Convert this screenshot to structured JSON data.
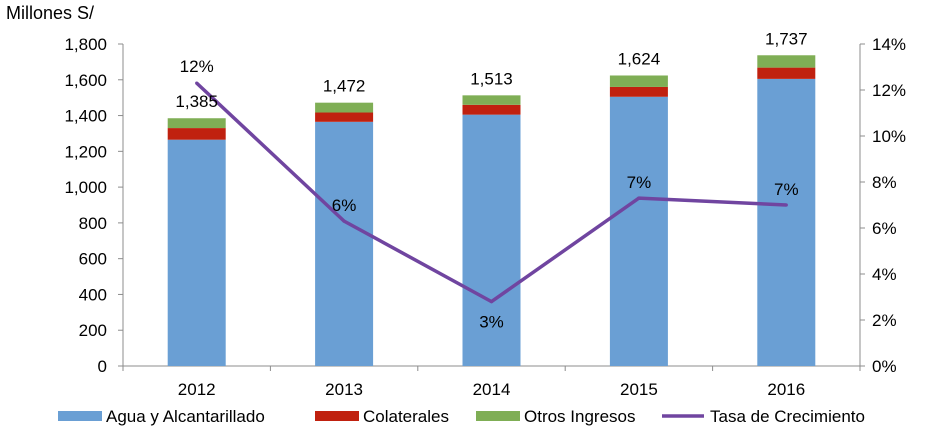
{
  "chart_data": {
    "type": "bar",
    "unit_label": "Millones S/",
    "categories": [
      "2012",
      "2013",
      "2014",
      "2015",
      "2016"
    ],
    "series": [
      {
        "name": "Agua y Alcantarillado",
        "type": "bar",
        "axis": "left",
        "color": "#6a9fd4",
        "values": [
          1265,
          1365,
          1405,
          1505,
          1605
        ]
      },
      {
        "name": "Colaterales",
        "type": "bar",
        "axis": "left",
        "color": "#c0210f",
        "values": [
          65,
          52,
          55,
          55,
          63
        ]
      },
      {
        "name": "Otros Ingresos",
        "type": "bar",
        "axis": "left",
        "color": "#7fae55",
        "values": [
          55,
          55,
          53,
          64,
          69
        ]
      },
      {
        "name": "Tasa de Crecimiento",
        "type": "line",
        "axis": "right",
        "color": "#7045a0",
        "values": [
          12.3,
          6.3,
          2.8,
          7.3,
          7.0
        ]
      }
    ],
    "totals": [
      1385,
      1472,
      1513,
      1624,
      1737
    ],
    "total_labels": [
      "1,385",
      "1,472",
      "1,513",
      "1,624",
      "1,737"
    ],
    "rate_labels": [
      "12%",
      "6%",
      "3%",
      "7%",
      "7%"
    ],
    "y_left": {
      "min": 0,
      "max": 1800,
      "ticks": [
        "0",
        "200",
        "400",
        "600",
        "800",
        "1,000",
        "1,200",
        "1,400",
        "1,600",
        "1,800"
      ]
    },
    "y_right": {
      "min": 0,
      "max": 14,
      "ticks": [
        "0%",
        "2%",
        "4%",
        "6%",
        "8%",
        "10%",
        "12%",
        "14%"
      ]
    },
    "grid": false,
    "legend_position": "bottom"
  }
}
